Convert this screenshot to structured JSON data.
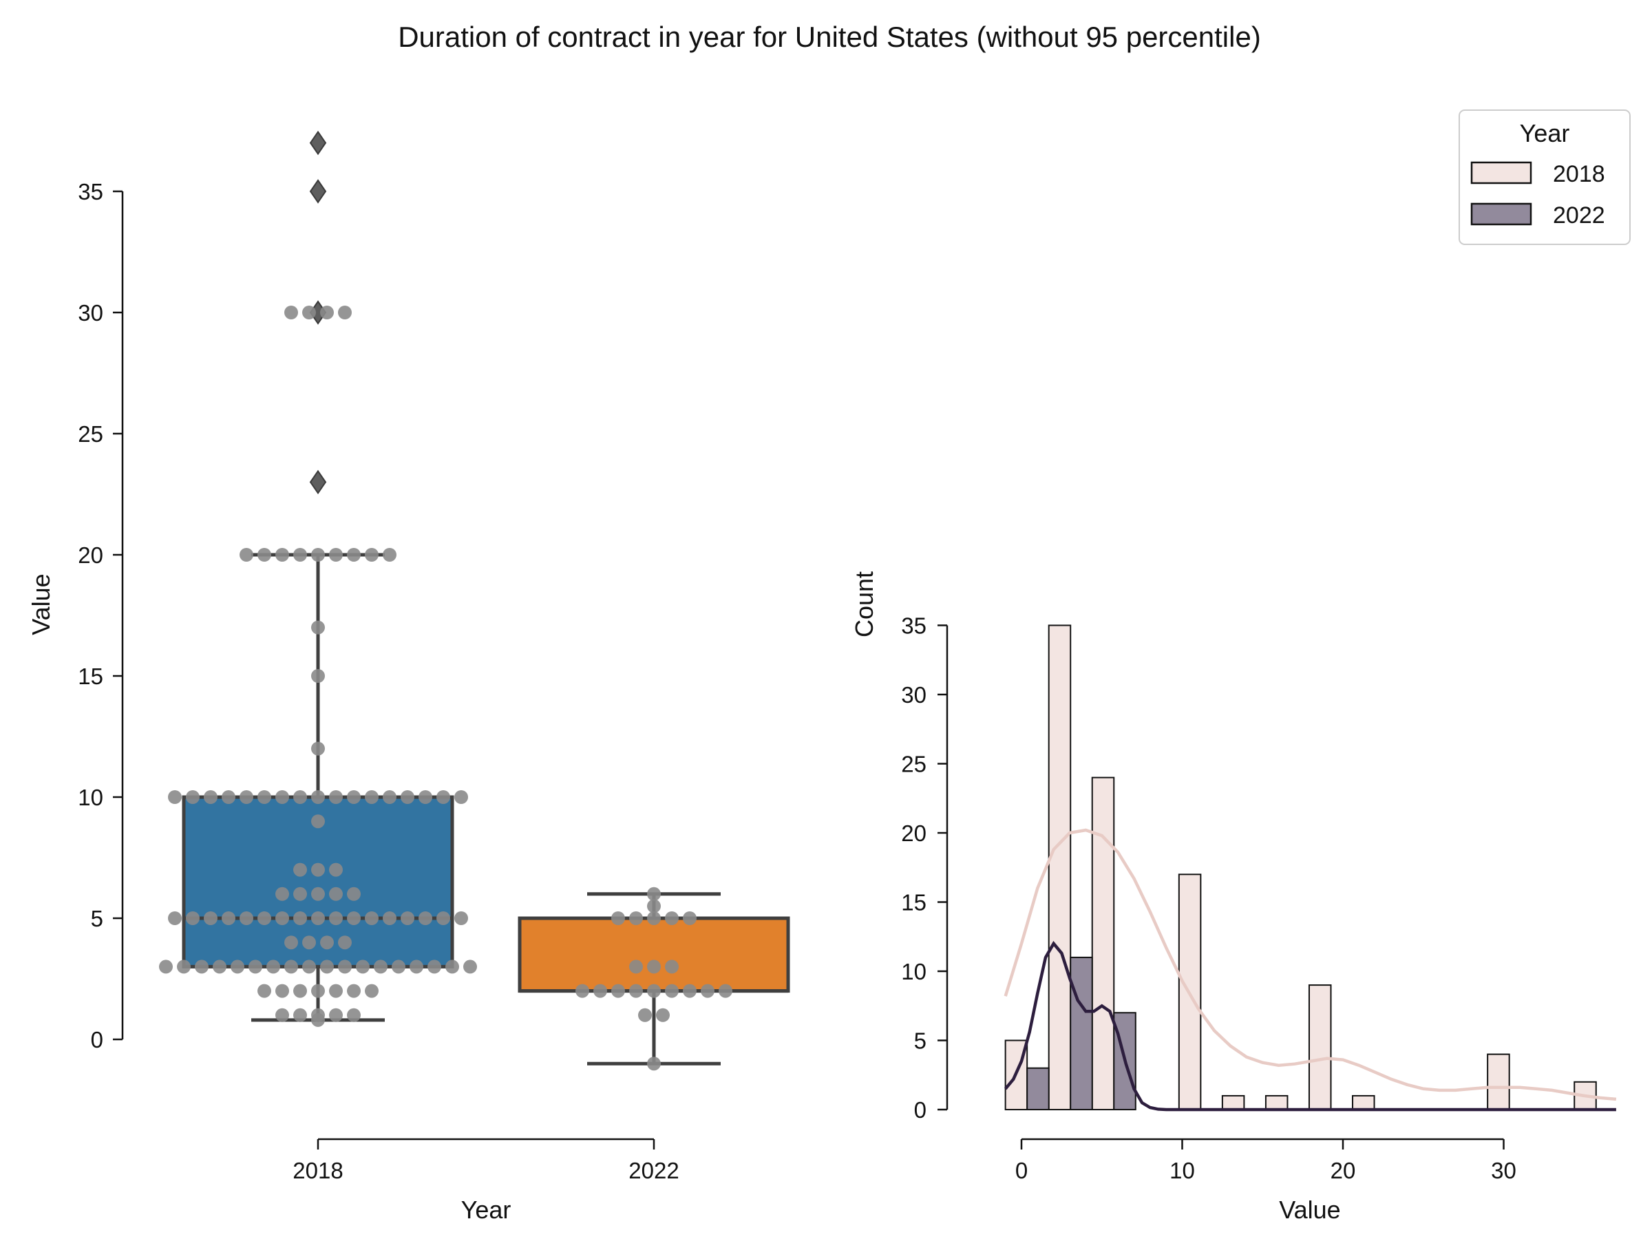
{
  "figure": {
    "title": "Duration of contract in year for United States (without 95 percentile)"
  },
  "chart_data": [
    {
      "type": "box",
      "xlabel": "Year",
      "ylabel": "Value",
      "ylim": [
        -1.5,
        38.5
      ],
      "yticks": [
        0,
        5,
        10,
        15,
        20,
        25,
        30,
        35
      ],
      "categories": [
        "2018",
        "2022"
      ],
      "boxes": [
        {
          "category": "2018",
          "whisker_low": 0.8,
          "q1": 3,
          "median": 5,
          "q3": 10,
          "whisker_high": 20,
          "outliers": [
            23,
            30,
            35,
            37
          ],
          "color": "#3274a1"
        },
        {
          "category": "2022",
          "whisker_low": -1,
          "q1": 2,
          "median": 2,
          "q3": 5,
          "whisker_high": 6,
          "outliers": [],
          "color": "#e1812c"
        }
      ],
      "swarm": [
        {
          "category": "2018",
          "groups": [
            {
              "value": 30,
              "count": 4
            },
            {
              "value": 20,
              "count": 9
            },
            {
              "value": 17,
              "count": 1
            },
            {
              "value": 15,
              "count": 1
            },
            {
              "value": 12,
              "count": 1
            },
            {
              "value": 10,
              "count": 17
            },
            {
              "value": 9,
              "count": 1
            },
            {
              "value": 7,
              "count": 3
            },
            {
              "value": 6,
              "count": 5
            },
            {
              "value": 5,
              "count": 17
            },
            {
              "value": 4,
              "count": 4
            },
            {
              "value": 3,
              "count": 18
            },
            {
              "value": 2,
              "count": 7
            },
            {
              "value": 1,
              "count": 5
            },
            {
              "value": 0.8,
              "count": 1
            }
          ]
        },
        {
          "category": "2022",
          "groups": [
            {
              "value": 6,
              "count": 1
            },
            {
              "value": 5.5,
              "count": 1
            },
            {
              "value": 5,
              "count": 5
            },
            {
              "value": 3,
              "count": 3
            },
            {
              "value": 2,
              "count": 9
            },
            {
              "value": 1,
              "count": 2
            },
            {
              "value": -1,
              "count": 1
            }
          ]
        }
      ]
    },
    {
      "type": "histogram",
      "xlabel": "Value",
      "ylabel": "Count",
      "xlim": [
        -1.8,
        37
      ],
      "ylim": [
        0,
        35.5
      ],
      "xticks": [
        0,
        10,
        20,
        30
      ],
      "yticks": [
        0,
        5,
        10,
        15,
        20,
        25,
        30,
        35
      ],
      "legend": {
        "title": "Year",
        "position": "top-right"
      },
      "series": [
        {
          "name": "2018",
          "fill": "#f3e5e2",
          "kde_color": "#e8cbc5",
          "bins": [
            {
              "x0": -1.0,
              "x1": 0.35,
              "count": 5
            },
            {
              "x0": 1.7,
              "x1": 3.05,
              "count": 35
            },
            {
              "x0": 4.4,
              "x1": 5.75,
              "count": 24
            },
            {
              "x0": 9.8,
              "x1": 11.15,
              "count": 17
            },
            {
              "x0": 12.5,
              "x1": 13.85,
              "count": 1
            },
            {
              "x0": 15.2,
              "x1": 16.55,
              "count": 1
            },
            {
              "x0": 17.9,
              "x1": 19.25,
              "count": 9
            },
            {
              "x0": 20.6,
              "x1": 21.95,
              "count": 1
            },
            {
              "x0": 29.0,
              "x1": 30.35,
              "count": 4
            },
            {
              "x0": 34.4,
              "x1": 35.75,
              "count": 2
            }
          ],
          "kde": [
            [
              -1,
              8.2
            ],
            [
              0,
              12
            ],
            [
              1,
              16
            ],
            [
              2,
              18.8
            ],
            [
              3,
              20
            ],
            [
              4,
              20.2
            ],
            [
              5,
              19.8
            ],
            [
              6,
              18.6
            ],
            [
              7,
              16.7
            ],
            [
              8,
              14.3
            ],
            [
              9,
              11.7
            ],
            [
              10,
              9.3
            ],
            [
              11,
              7.3
            ],
            [
              12,
              5.7
            ],
            [
              13,
              4.6
            ],
            [
              14,
              3.8
            ],
            [
              15,
              3.4
            ],
            [
              16,
              3.2
            ],
            [
              17,
              3.3
            ],
            [
              18,
              3.5
            ],
            [
              19,
              3.7
            ],
            [
              20,
              3.6
            ],
            [
              21,
              3.2
            ],
            [
              22,
              2.7
            ],
            [
              23,
              2.2
            ],
            [
              24,
              1.8
            ],
            [
              25,
              1.5
            ],
            [
              26,
              1.4
            ],
            [
              27,
              1.4
            ],
            [
              28,
              1.5
            ],
            [
              29,
              1.6
            ],
            [
              30,
              1.6
            ],
            [
              31,
              1.6
            ],
            [
              32,
              1.5
            ],
            [
              33,
              1.4
            ],
            [
              34,
              1.2
            ],
            [
              35,
              1.0
            ],
            [
              36,
              0.85
            ],
            [
              37,
              0.75
            ]
          ]
        },
        {
          "name": "2022",
          "fill": "#928a9c",
          "kde_color": "#2d1e3e",
          "bins": [
            {
              "x0": 0.35,
              "x1": 1.7,
              "count": 3
            },
            {
              "x0": 3.05,
              "x1": 4.4,
              "count": 11
            },
            {
              "x0": 5.75,
              "x1": 7.1,
              "count": 7
            }
          ],
          "kde": [
            [
              -1,
              1.5
            ],
            [
              -0.5,
              2.2
            ],
            [
              0,
              3.5
            ],
            [
              0.5,
              5.6
            ],
            [
              1,
              8.4
            ],
            [
              1.5,
              11
            ],
            [
              2,
              12
            ],
            [
              2.5,
              11.3
            ],
            [
              3,
              9.5
            ],
            [
              3.5,
              7.9
            ],
            [
              4,
              7.1
            ],
            [
              4.5,
              7.1
            ],
            [
              5,
              7.5
            ],
            [
              5.5,
              7.1
            ],
            [
              6,
              5.5
            ],
            [
              6.5,
              3.3
            ],
            [
              7,
              1.5
            ],
            [
              7.5,
              0.5
            ],
            [
              8,
              0.15
            ],
            [
              8.5,
              0.03
            ],
            [
              9,
              0
            ],
            [
              37,
              0
            ]
          ]
        }
      ]
    }
  ]
}
